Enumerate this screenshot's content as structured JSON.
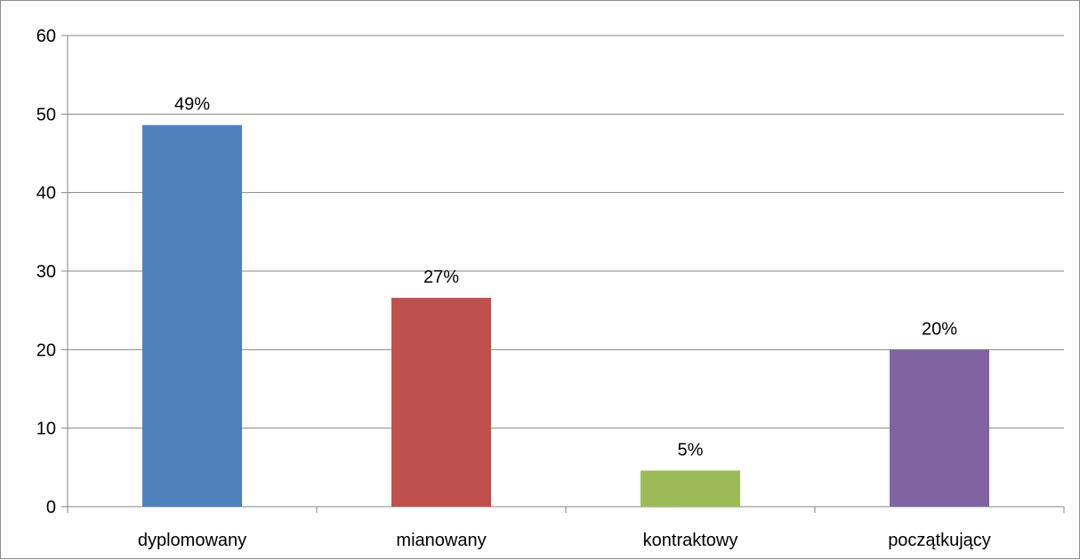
{
  "chart_data": {
    "type": "bar",
    "categories": [
      "dyplomowany",
      "mianowany",
      "kontraktowy",
      "początkujący"
    ],
    "values": [
      48.6,
      26.6,
      4.6,
      20.0
    ],
    "data_labels": [
      "49%",
      "27%",
      "5%",
      "20%"
    ],
    "colors": [
      "#4F81BD",
      "#C0504D",
      "#9BBB59",
      "#8064A2"
    ],
    "ylim": [
      0,
      60
    ],
    "yticks": [
      "0",
      "10",
      "20",
      "30",
      "40",
      "50",
      "60"
    ],
    "grid": true,
    "legend": "none"
  }
}
